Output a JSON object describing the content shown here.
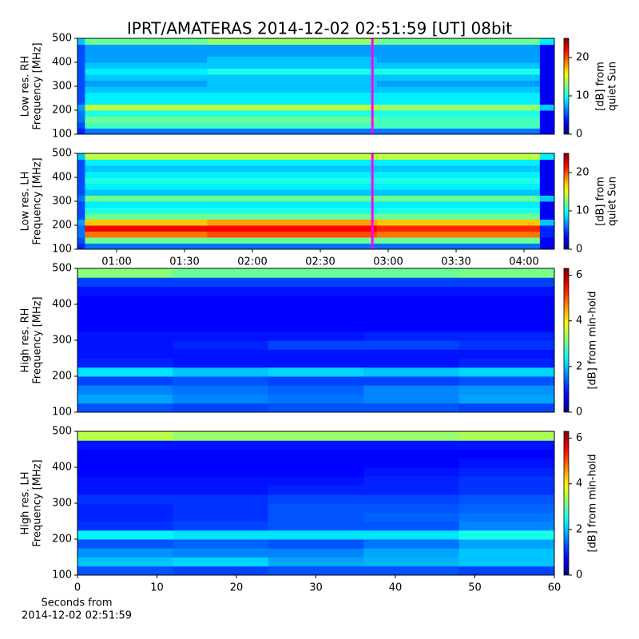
{
  "title": "IPRT/AMATERAS 2014-12-02 02:51:59 [UT]   08bit",
  "chart_data": [
    {
      "type": "heatmap",
      "colormap": "jet",
      "ylabel": [
        "Low res. RH",
        "Frequency [MHz]"
      ],
      "xlim": [
        42.7,
        253.4
      ],
      "ylim": [
        100,
        500
      ],
      "yticks": [
        100,
        200,
        300,
        400,
        500
      ],
      "x_edges": [
        42.7,
        46,
        100,
        175,
        247,
        253.4
      ],
      "y_edges": [
        100,
        125,
        150,
        175,
        200,
        225,
        250,
        275,
        300,
        325,
        350,
        375,
        400,
        425,
        450,
        475,
        500
      ],
      "values": [
        [
          4,
          6,
          6,
          6,
          3
        ],
        [
          5,
          11,
          11,
          11,
          3
        ],
        [
          6,
          12,
          12,
          11,
          3
        ],
        [
          6,
          10,
          10,
          10,
          3
        ],
        [
          7,
          14,
          14,
          13,
          8
        ],
        [
          5,
          9,
          9,
          9,
          3
        ],
        [
          5,
          9,
          9,
          9,
          3
        ],
        [
          5,
          8,
          8,
          8,
          3
        ],
        [
          5,
          7,
          8,
          7,
          3
        ],
        [
          5,
          8,
          8,
          8,
          3
        ],
        [
          5,
          9,
          10,
          10,
          3
        ],
        [
          5,
          8,
          8,
          8,
          3
        ],
        [
          5,
          7,
          8,
          7,
          3
        ],
        [
          5,
          7,
          7,
          7,
          3
        ],
        [
          5,
          7,
          7,
          7,
          3
        ],
        [
          8,
          12,
          13,
          12,
          9
        ]
      ],
      "clim": [
        0,
        25
      ],
      "cticks": [
        0,
        10,
        20
      ],
      "colorbar_label": [
        "[dB] from",
        "quiet Sun"
      ],
      "event_x": 173,
      "event_color": "#ff00ff"
    },
    {
      "type": "heatmap",
      "colormap": "jet",
      "ylabel": [
        "Low res. LH",
        "Frequency [MHz]"
      ],
      "xlim": [
        42.7,
        253.4
      ],
      "ylim": [
        100,
        500
      ],
      "yticks": [
        100,
        200,
        300,
        400,
        500
      ],
      "xticks": [
        {
          "value": 60,
          "label": "01:00"
        },
        {
          "value": 90,
          "label": "01:30"
        },
        {
          "value": 120,
          "label": "02:00"
        },
        {
          "value": 150,
          "label": "02:30"
        },
        {
          "value": 180,
          "label": "03:00"
        },
        {
          "value": 210,
          "label": "03:30"
        },
        {
          "value": 240,
          "label": "04:00"
        }
      ],
      "x_edges": [
        42.7,
        46,
        100,
        175,
        247,
        253.4
      ],
      "y_edges": [
        100,
        125,
        150,
        175,
        200,
        225,
        250,
        275,
        300,
        325,
        350,
        375,
        400,
        425,
        450,
        475,
        500
      ],
      "values": [
        [
          4,
          6,
          6,
          6,
          3
        ],
        [
          5,
          12,
          12,
          12,
          3
        ],
        [
          6,
          19,
          20,
          19,
          4
        ],
        [
          6,
          22,
          22,
          21,
          4
        ],
        [
          7,
          17,
          18,
          17,
          8
        ],
        [
          5,
          12,
          12,
          12,
          3
        ],
        [
          5,
          10,
          10,
          10,
          3
        ],
        [
          5,
          9,
          9,
          9,
          3
        ],
        [
          6,
          12,
          12,
          12,
          8
        ],
        [
          5,
          8,
          8,
          8,
          3
        ],
        [
          5,
          9,
          9,
          9,
          3
        ],
        [
          5,
          10,
          10,
          10,
          3
        ],
        [
          5,
          9,
          9,
          9,
          3
        ],
        [
          5,
          8,
          8,
          8,
          3
        ],
        [
          5,
          9,
          9,
          9,
          3
        ],
        [
          8,
          14,
          14,
          14,
          9
        ]
      ],
      "clim": [
        0,
        25
      ],
      "cticks": [
        0,
        10,
        20
      ],
      "colorbar_label": [
        "[dB] from",
        "quiet Sun"
      ],
      "event_x": 173,
      "event_color": "#ff00ff"
    },
    {
      "type": "heatmap",
      "colormap": "jet",
      "ylabel": [
        "High res. RH",
        "Frequency [MHz]"
      ],
      "xlim": [
        0,
        60
      ],
      "ylim": [
        100,
        500
      ],
      "yticks": [
        100,
        200,
        300,
        400,
        500
      ],
      "x_edges": [
        0,
        12,
        24,
        36,
        48,
        60
      ],
      "y_edges": [
        100,
        125,
        150,
        175,
        200,
        225,
        250,
        275,
        300,
        325,
        350,
        375,
        400,
        425,
        450,
        475,
        500
      ],
      "values": [
        [
          1.3,
          1.2,
          1.3,
          1.3,
          1.2
        ],
        [
          1.8,
          1.6,
          1.5,
          1.6,
          1.8
        ],
        [
          1.6,
          1.5,
          1.4,
          1.6,
          1.7
        ],
        [
          1.2,
          1.3,
          1.2,
          1.2,
          1.3
        ],
        [
          2.2,
          2.0,
          2.1,
          2.0,
          2.1
        ],
        [
          1.0,
          0.9,
          0.9,
          0.9,
          1.0
        ],
        [
          0.9,
          0.9,
          0.9,
          0.9,
          0.9
        ],
        [
          0.9,
          1.0,
          1.2,
          1.2,
          1.1
        ],
        [
          0.9,
          0.9,
          0.9,
          1.0,
          1.0
        ],
        [
          0.8,
          0.8,
          0.8,
          0.8,
          0.8
        ],
        [
          0.8,
          0.8,
          0.8,
          0.8,
          0.8
        ],
        [
          0.8,
          0.8,
          0.8,
          0.8,
          0.8
        ],
        [
          0.8,
          0.8,
          0.8,
          0.8,
          0.8
        ],
        [
          0.9,
          0.9,
          0.9,
          0.9,
          0.9
        ],
        [
          1.2,
          1.2,
          1.2,
          1.2,
          1.2
        ],
        [
          3.2,
          3.0,
          3.0,
          3.0,
          3.1
        ]
      ],
      "clim": [
        0,
        6.3
      ],
      "cticks": [
        0,
        2,
        4,
        6
      ],
      "colorbar_label": [
        "[dB] from min-hold"
      ]
    },
    {
      "type": "heatmap",
      "colormap": "jet",
      "ylabel": [
        "High res. LH",
        "Frequency [MHz]"
      ],
      "xlim": [
        0,
        60
      ],
      "ylim": [
        100,
        500
      ],
      "yticks": [
        100,
        200,
        300,
        400,
        500
      ],
      "xticks": [
        0,
        10,
        20,
        30,
        40,
        50,
        60
      ],
      "xlabel": [
        "Seconds from",
        "2014-12-02 02:51:59"
      ],
      "x_edges": [
        0,
        12,
        24,
        36,
        48,
        60
      ],
      "y_edges": [
        100,
        125,
        150,
        175,
        200,
        225,
        250,
        275,
        300,
        325,
        350,
        375,
        400,
        425,
        450,
        475,
        500
      ],
      "values": [
        [
          1.3,
          1.2,
          1.3,
          1.3,
          1.2
        ],
        [
          2.0,
          2.1,
          1.8,
          1.9,
          2.0
        ],
        [
          1.7,
          1.6,
          1.6,
          1.8,
          2.0
        ],
        [
          1.3,
          1.4,
          1.3,
          1.5,
          1.8
        ],
        [
          2.3,
          2.2,
          2.2,
          2.2,
          2.5
        ],
        [
          1.1,
          1.2,
          1.3,
          1.3,
          1.6
        ],
        [
          1.0,
          1.1,
          1.3,
          1.4,
          1.5
        ],
        [
          1.0,
          1.1,
          1.3,
          1.3,
          1.4
        ],
        [
          1.1,
          1.1,
          1.2,
          1.2,
          1.3
        ],
        [
          0.9,
          0.9,
          1.0,
          1.0,
          1.1
        ],
        [
          0.9,
          0.9,
          0.9,
          1.0,
          1.1
        ],
        [
          0.8,
          0.8,
          0.8,
          0.9,
          1.0
        ],
        [
          0.8,
          0.8,
          0.8,
          0.8,
          0.9
        ],
        [
          0.8,
          0.8,
          0.8,
          0.8,
          0.8
        ],
        [
          0.9,
          0.9,
          0.9,
          0.9,
          0.9
        ],
        [
          3.5,
          3.3,
          3.3,
          3.3,
          3.4
        ]
      ],
      "clim": [
        0,
        6.3
      ],
      "cticks": [
        0,
        2,
        4,
        6
      ],
      "colorbar_label": [
        "[dB] from min-hold"
      ]
    }
  ]
}
